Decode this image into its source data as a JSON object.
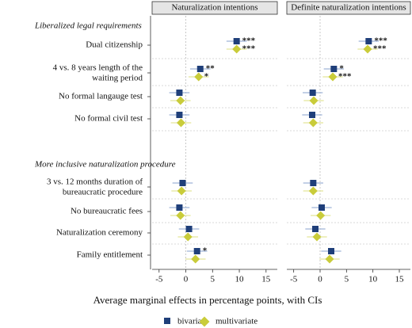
{
  "chart_data": {
    "type": "dot",
    "xlabel": "Average marginal effects in percentage points, with CIs",
    "xlim": [
      -6.3,
      17.4
    ],
    "xticks": [
      -5,
      0,
      5,
      10,
      15
    ],
    "groups": [
      {
        "title": "Liberalized legal requirements",
        "categories": [
          "Dual citizenship",
          "4 vs. 8 years length of the\nwaiting period",
          "No formal langauge test",
          "No formal civil test"
        ]
      },
      {
        "title": "More inclusive naturalization procedure",
        "categories": [
          "3 vs. 12 months duration of\nbureaucratic procedure",
          "No bureaucratic fees",
          "Naturalization ceremony",
          "Family entitlement"
        ]
      }
    ],
    "panels": [
      {
        "title": "Naturalization intentions",
        "series": [
          {
            "name": "bivariate",
            "color": "#1f3f7a",
            "ci_color": "#9fb4d8",
            "marker": "square",
            "values": [
              [
                9.5,
                2.7,
                -1.2,
                -1.2
              ],
              [
                -0.6,
                -1.2,
                0.6,
                2.1
              ]
            ],
            "lower": [
              [
                7.6,
                0.8,
                -3.1,
                -3.1
              ],
              [
                -2.5,
                -3.1,
                -1.3,
                0.2
              ]
            ],
            "upper": [
              [
                11.4,
                4.6,
                0.7,
                0.7
              ],
              [
                1.3,
                0.7,
                2.5,
                4.0
              ]
            ],
            "stars": [
              [
                "***",
                "**",
                null,
                null
              ],
              [
                null,
                null,
                null,
                "*"
              ]
            ]
          },
          {
            "name": "multivariate",
            "color": "#c9cc3a",
            "ci_color": "#e3e59a",
            "marker": "diamond",
            "values": [
              [
                9.5,
                2.4,
                -1.0,
                -0.9
              ],
              [
                -0.8,
                -1.0,
                0.4,
                1.8
              ]
            ],
            "lower": [
              [
                7.6,
                0.5,
                -2.9,
                -2.8
              ],
              [
                -2.7,
                -2.9,
                -1.5,
                -0.1
              ]
            ],
            "upper": [
              [
                11.4,
                4.3,
                0.9,
                1.0
              ],
              [
                1.1,
                0.9,
                2.3,
                3.7
              ]
            ],
            "stars": [
              [
                "***",
                "*",
                null,
                null
              ],
              [
                null,
                null,
                null,
                null
              ]
            ]
          }
        ]
      },
      {
        "title": "Definite naturalization intentions",
        "series": [
          {
            "name": "bivariate",
            "color": "#1f3f7a",
            "ci_color": "#9fb4d8",
            "marker": "square",
            "values": [
              [
                9.2,
                2.6,
                -1.4,
                -1.5
              ],
              [
                -1.3,
                0.3,
                -0.9,
                2.1
              ]
            ],
            "lower": [
              [
                7.3,
                0.7,
                -3.3,
                -3.4
              ],
              [
                -3.2,
                -1.6,
                -2.8,
                0.2
              ]
            ],
            "upper": [
              [
                11.1,
                4.5,
                0.5,
                0.4
              ],
              [
                0.6,
                2.2,
                1.0,
                4.0
              ]
            ],
            "stars": [
              [
                "***",
                "*",
                null,
                null
              ],
              [
                null,
                null,
                null,
                null
              ]
            ]
          },
          {
            "name": "multivariate",
            "color": "#c9cc3a",
            "ci_color": "#e3e59a",
            "marker": "diamond",
            "values": [
              [
                9.0,
                2.4,
                -1.2,
                -1.3
              ],
              [
                -1.3,
                0.1,
                -0.6,
                1.8
              ]
            ],
            "lower": [
              [
                7.1,
                0.5,
                -3.1,
                -3.2
              ],
              [
                -3.2,
                -1.8,
                -2.5,
                -0.1
              ]
            ],
            "upper": [
              [
                10.9,
                4.3,
                0.7,
                0.6
              ],
              [
                0.6,
                2.0,
                1.3,
                3.7
              ]
            ],
            "stars": [
              [
                "***",
                "***",
                null,
                null
              ],
              [
                null,
                null,
                null,
                null
              ]
            ]
          }
        ]
      }
    ]
  }
}
